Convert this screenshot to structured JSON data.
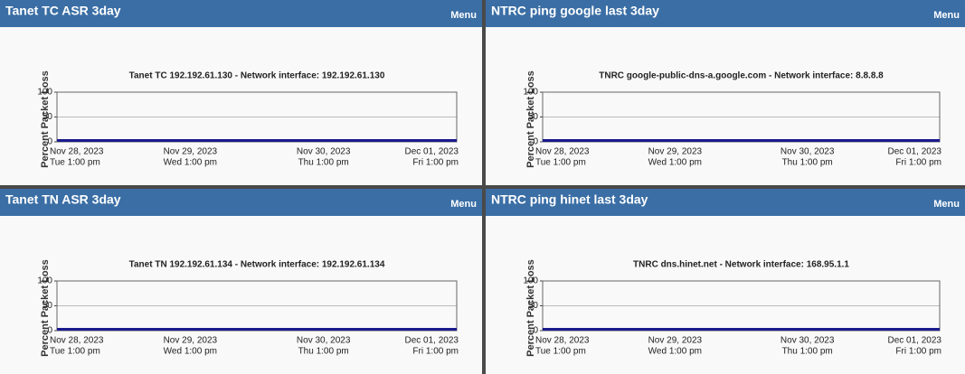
{
  "panels": [
    {
      "title": "Tanet TC ASR 3day",
      "menu": "Menu",
      "chart": {
        "type": "line",
        "title": "Tanet TC 192.192.61.130 - Network interface: 192.192.61.130",
        "ylabel": "Percent Packet Loss",
        "ylim": [
          0,
          100
        ],
        "yticks": [
          0,
          50,
          100
        ],
        "grid": true,
        "xtick_labels": [
          [
            "Nov 28, 2023",
            "Tue 1:00 pm"
          ],
          [
            "Nov 29, 2023",
            "Wed 1:00 pm"
          ],
          [
            "Nov 30, 2023",
            "Thu 1:00 pm"
          ],
          [
            "Dec 01, 2023",
            "Fri 1:00 pm"
          ]
        ],
        "series": [
          {
            "color": "#1a1a8c",
            "values": [
              0,
              0,
              0,
              0,
              0,
              0,
              0,
              0,
              0,
              0,
              0,
              0,
              0
            ]
          }
        ]
      }
    },
    {
      "title": "NTRC ping google last 3day",
      "menu": "Menu",
      "chart": {
        "type": "line",
        "title": "TNRC  google-public-dns-a.google.com - Network interface: 8.8.8.8",
        "ylabel": "Percent Packet Loss",
        "ylim": [
          0,
          100
        ],
        "yticks": [
          0,
          50,
          100
        ],
        "grid": true,
        "xtick_labels": [
          [
            "Nov 28, 2023",
            "Tue 1:00 pm"
          ],
          [
            "Nov 29, 2023",
            "Wed 1:00 pm"
          ],
          [
            "Nov 30, 2023",
            "Thu 1:00 pm"
          ],
          [
            "Dec 01, 2023",
            "Fri 1:00 pm"
          ]
        ],
        "series": [
          {
            "color": "#1a1a8c",
            "values": [
              0,
              0,
              0,
              0,
              0,
              0,
              0,
              0,
              0,
              0,
              0,
              0,
              0
            ]
          }
        ]
      }
    },
    {
      "title": "Tanet TN ASR 3day",
      "menu": "Menu",
      "chart": {
        "type": "line",
        "title": "Tanet TN 192.192.61.134 - Network interface: 192.192.61.134",
        "ylabel": "Percent Packet Loss",
        "ylim": [
          0,
          100
        ],
        "yticks": [
          0,
          50,
          100
        ],
        "grid": true,
        "xtick_labels": [
          [
            "Nov 28, 2023",
            "Tue 1:00 pm"
          ],
          [
            "Nov 29, 2023",
            "Wed 1:00 pm"
          ],
          [
            "Nov 30, 2023",
            "Thu 1:00 pm"
          ],
          [
            "Dec 01, 2023",
            "Fri 1:00 pm"
          ]
        ],
        "series": [
          {
            "color": "#1a1a8c",
            "values": [
              0,
              0,
              0,
              0,
              0,
              0,
              0,
              0,
              0,
              0,
              0,
              0,
              0
            ]
          }
        ]
      }
    },
    {
      "title": "NTRC ping hinet last 3day",
      "menu": "Menu",
      "chart": {
        "type": "line",
        "title": "TNRC dns.hinet.net - Network interface: 168.95.1.1",
        "ylabel": "Percent Packet Loss",
        "ylim": [
          0,
          100
        ],
        "yticks": [
          0,
          50,
          100
        ],
        "grid": true,
        "xtick_labels": [
          [
            "Nov 28, 2023",
            "Tue 1:00 pm"
          ],
          [
            "Nov 29, 2023",
            "Wed 1:00 pm"
          ],
          [
            "Nov 30, 2023",
            "Thu 1:00 pm"
          ],
          [
            "Dec 01, 2023",
            "Fri 1:00 pm"
          ]
        ],
        "series": [
          {
            "color": "#1a1a8c",
            "values": [
              0,
              0,
              0,
              0,
              0,
              0,
              0,
              0,
              0,
              0,
              0,
              0,
              0
            ]
          }
        ]
      }
    }
  ]
}
